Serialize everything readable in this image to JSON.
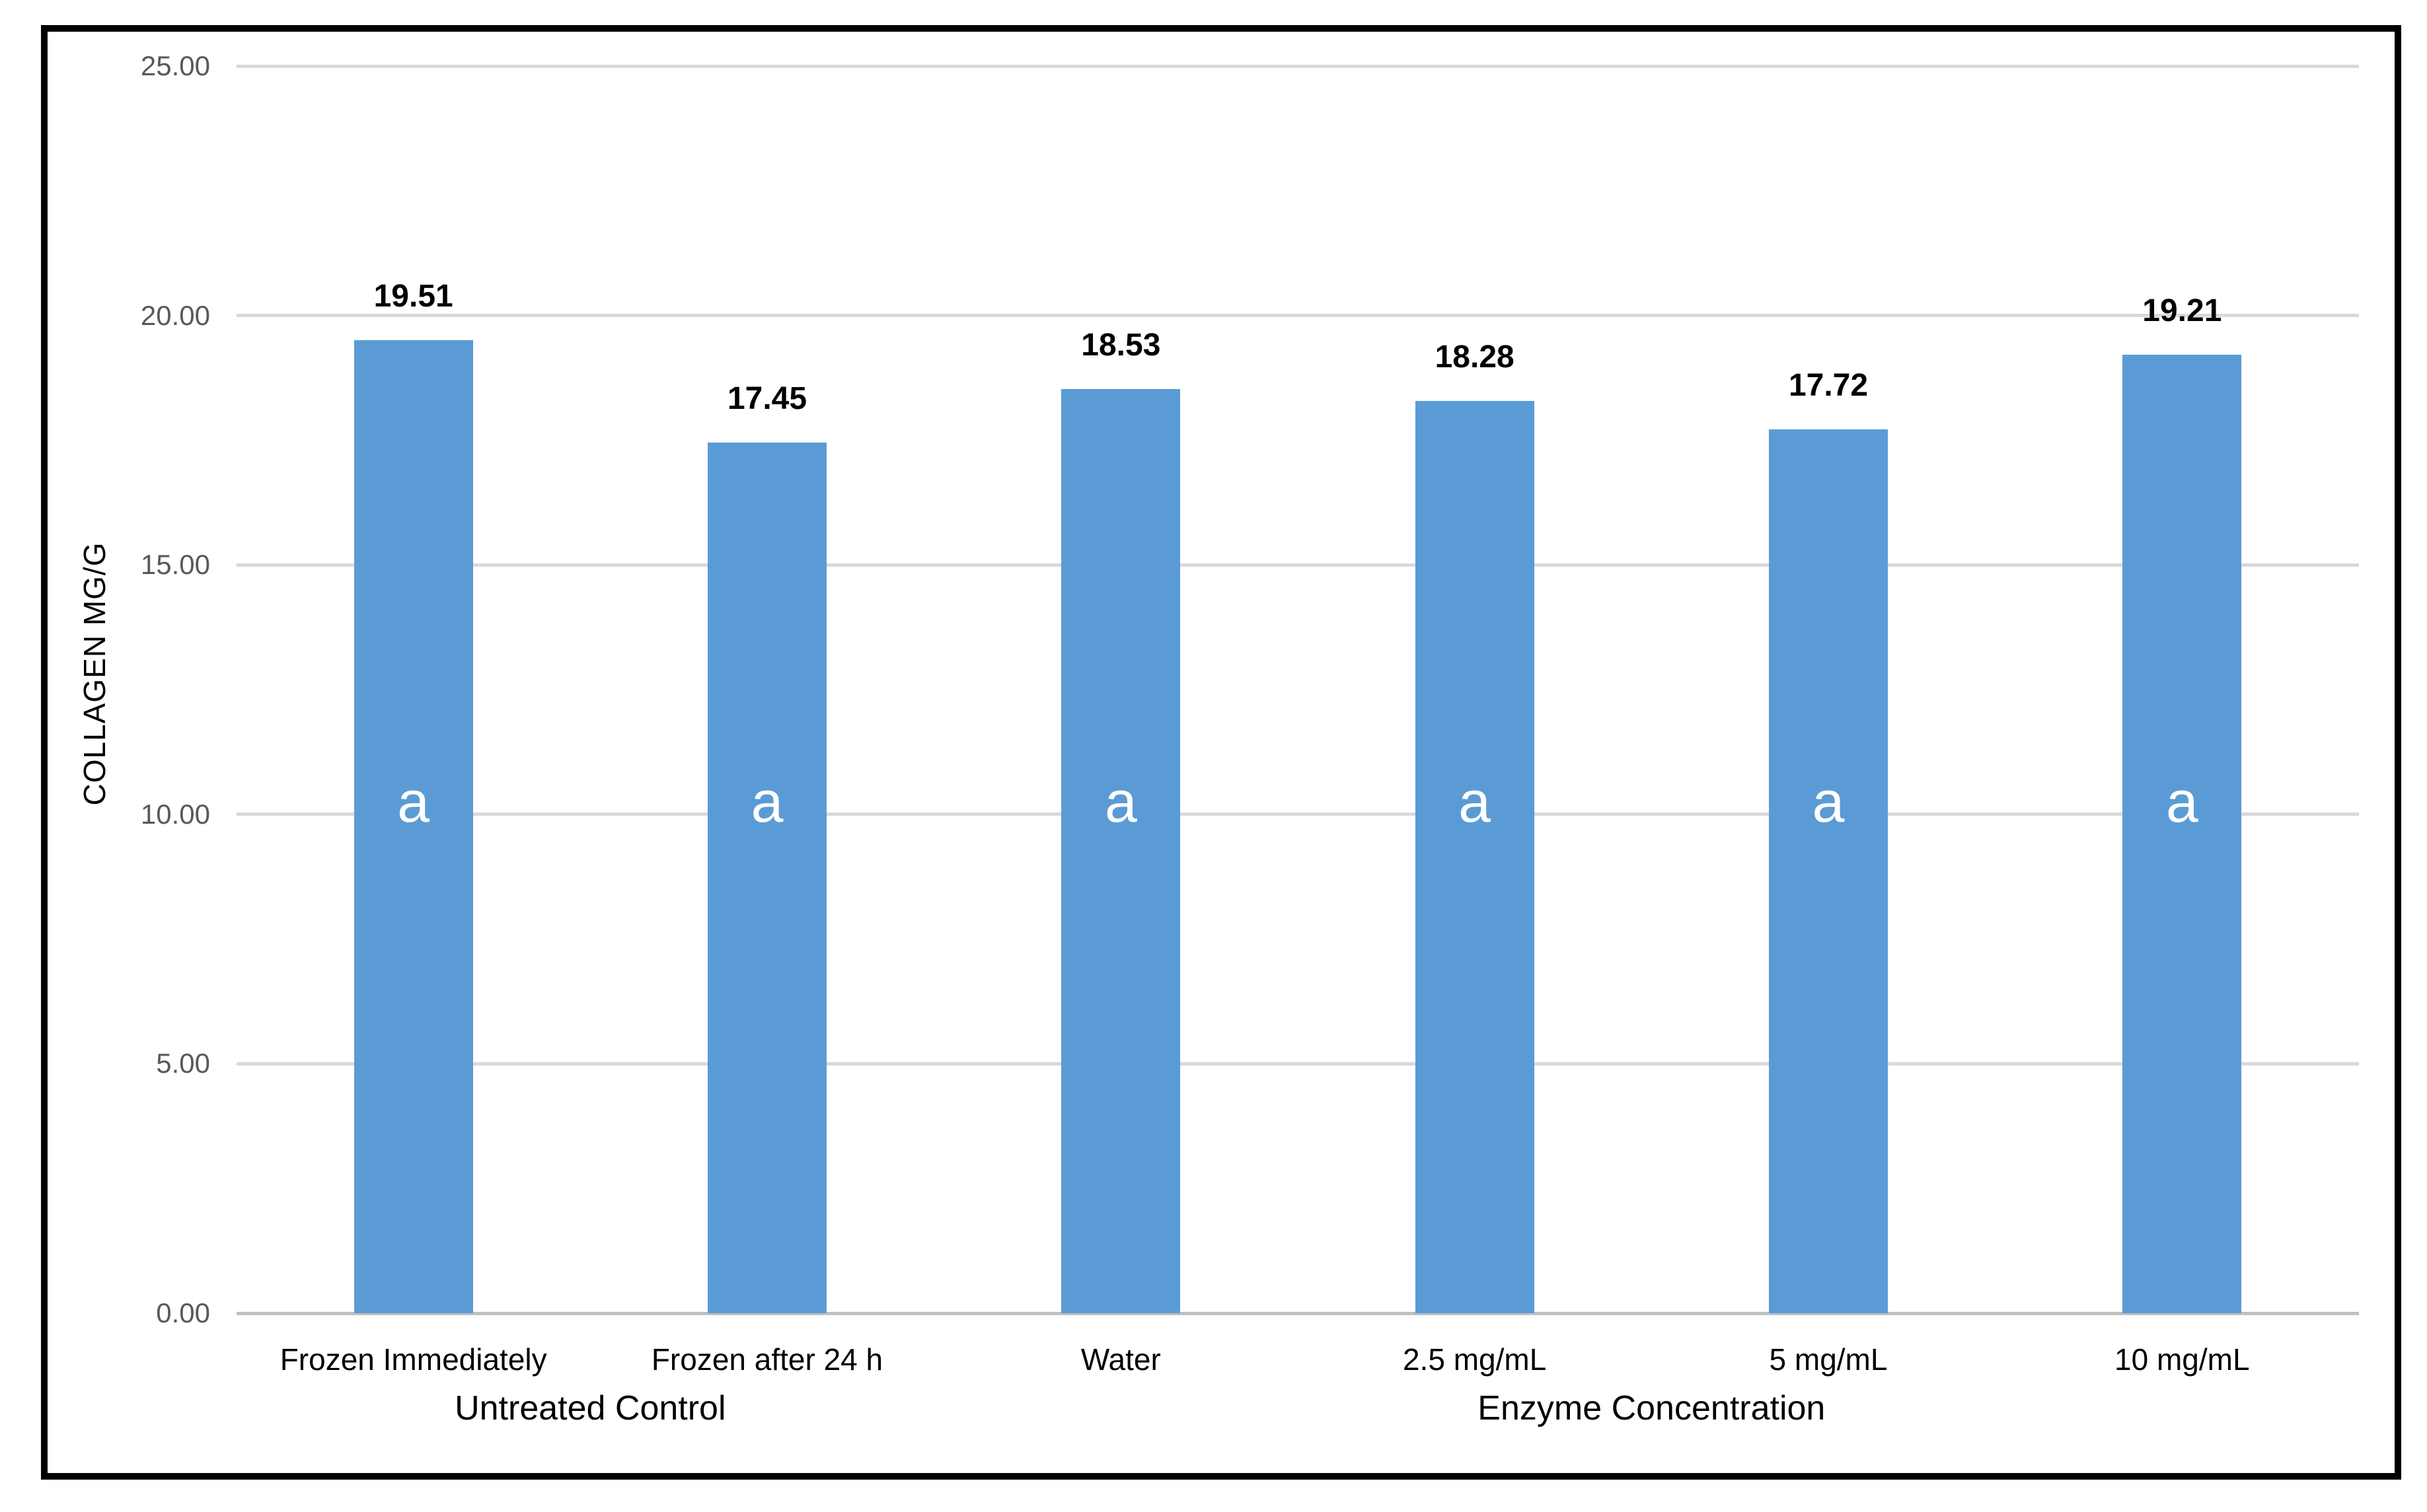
{
  "chart_data": {
    "type": "bar",
    "title": "",
    "ylabel": "COLLAGEN MG/G",
    "xlabel": "",
    "ylim": [
      0,
      25
    ],
    "ytick_values": [
      0,
      5,
      10,
      15,
      20,
      25
    ],
    "ytick_labels": [
      "0.00",
      "5.00",
      "10.00",
      "15.00",
      "20.00",
      "25.00"
    ],
    "categories": [
      "Frozen Immediately",
      "Frozen after 24 h",
      "Water",
      "2.5 mg/mL",
      "5 mg/mL",
      "10 mg/mL"
    ],
    "values": [
      19.51,
      17.45,
      18.53,
      18.28,
      17.72,
      19.21
    ],
    "data_labels": [
      "19.51",
      "17.45",
      "18.53",
      "18.28",
      "17.72",
      "19.21"
    ],
    "bar_annotations": [
      "a",
      "a",
      "a",
      "a",
      "a",
      "a"
    ],
    "groups": [
      {
        "label": "Untreated Control",
        "start": 0,
        "count": 2
      },
      {
        "label": "Enzyme Concentration",
        "start": 2,
        "count": 4
      }
    ],
    "grid": true,
    "legend": "none",
    "colors": {
      "bar": "#5B9BD5",
      "gridline": "#D9D9D9",
      "axis_line": "#BFBFBF",
      "tick_text": "#595959",
      "label_text": "#000000",
      "value_label_text": "#000000",
      "annotation_text": "#FFFFFF",
      "frame": "#000000",
      "background": "#FFFFFF"
    }
  }
}
